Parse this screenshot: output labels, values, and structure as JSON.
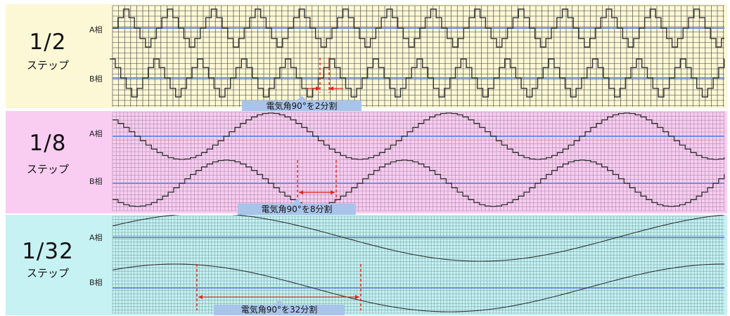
{
  "colors": {
    "panel1_bg": "#fcf8d6",
    "panel2_bg": "#f9cdf2",
    "panel3_bg": "#c6f2f3",
    "axis_line": "#6f8fe0",
    "wave": "#333333",
    "marker": "#e2231a",
    "callout": "#a9c4ea"
  },
  "panels": [
    {
      "step_fraction": "1/2",
      "step_word": "ステップ",
      "phase_a": "A相",
      "phase_b": "B相",
      "callout": "電気角90°を2分割",
      "wave_type": "half-step square"
    },
    {
      "step_fraction": "1/8",
      "step_word": "ステップ",
      "phase_a": "A相",
      "phase_b": "B相",
      "callout": "電気角90°を8分割",
      "wave_type": "stepped sine"
    },
    {
      "step_fraction": "1/32",
      "step_word": "ステップ",
      "phase_a": "A相",
      "phase_b": "B相",
      "callout": "電気角90°を32分割",
      "wave_type": "smooth sine"
    }
  ]
}
